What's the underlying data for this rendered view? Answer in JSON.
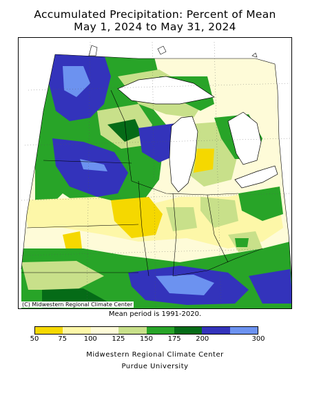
{
  "title": {
    "line1": "Accumulated Precipitation: Percent of Mean",
    "line2": "May 1, 2024 to May 31, 2024"
  },
  "map": {
    "credit": "(C) Midwestern Regional Climate Center",
    "mean_period": "Mean period is 1991-2020."
  },
  "legend": {
    "ticks": [
      "50",
      "75",
      "100",
      "125",
      "150",
      "175",
      "200",
      "300"
    ],
    "colors": [
      "#f5d800",
      "#fdf7a8",
      "#fefbd8",
      "#c8e08a",
      "#28a428",
      "#056b17",
      "#3333bb",
      "#6c92f0"
    ]
  },
  "footer": {
    "line1": "Midwestern Regional Climate Center",
    "line2": "Purdue University"
  }
}
